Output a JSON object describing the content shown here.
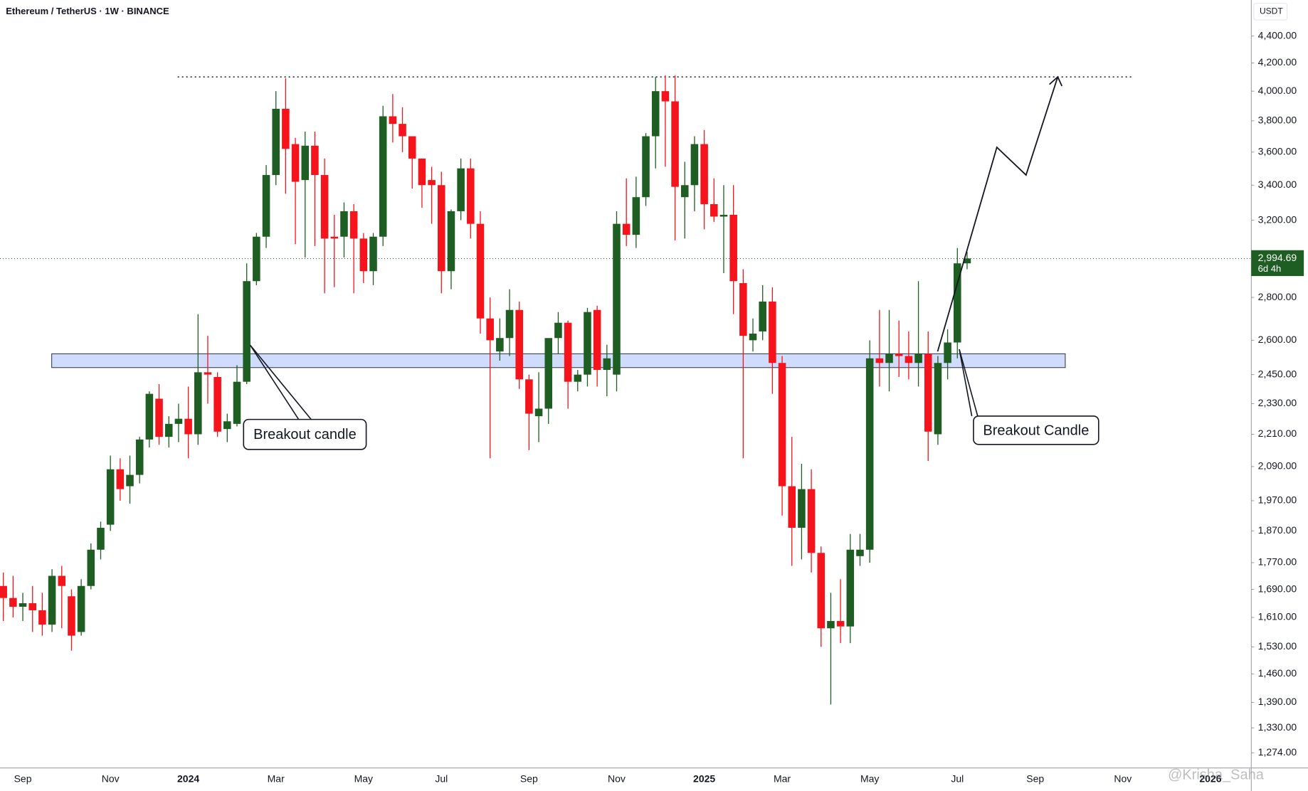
{
  "chart_data": {
    "type": "candlestick",
    "title": "Ethereum / TetherUS · 1W · BINANCE",
    "currency": "USDT",
    "categories": [
      null,
      null,
      "Sep",
      null,
      null,
      null,
      null,
      null,
      null,
      null,
      null,
      "Nov",
      null,
      null,
      null,
      null,
      null,
      null,
      null,
      "2024",
      null,
      null,
      null,
      null,
      null,
      null,
      null,
      null,
      "Mar",
      null,
      null,
      null,
      null,
      null,
      null,
      null,
      null,
      "May",
      null,
      null,
      null,
      null,
      null,
      null,
      null,
      "Jul",
      null,
      null,
      null,
      null,
      null,
      null,
      null,
      null,
      "Sep",
      null,
      null,
      null,
      null,
      null,
      null,
      null,
      null,
      "Nov",
      null,
      null,
      null,
      null,
      null,
      null,
      null,
      null,
      "2025",
      null,
      null,
      null,
      null,
      null,
      null,
      null,
      "Mar",
      null,
      null,
      null,
      null,
      null,
      null,
      null,
      null,
      "May",
      null,
      null,
      null,
      null,
      null,
      null,
      null,
      null,
      "Jul",
      null,
      null,
      null,
      null,
      null,
      null,
      null,
      "Sep",
      null,
      null,
      null,
      null,
      null,
      null,
      null,
      null,
      "Nov",
      null,
      null,
      null,
      null,
      null,
      null,
      null,
      null,
      "2026",
      null,
      null,
      null,
      null
    ],
    "open": [
      1700,
      1665,
      1640,
      1650,
      1630,
      1590,
      1730,
      1670,
      1570,
      1700,
      1810,
      1890,
      2080,
      2020,
      2060,
      2190,
      2350,
      2200,
      2250,
      2270,
      2210,
      2460,
      2440,
      2230,
      2250,
      2420,
      2880,
      3110,
      3460,
      3880,
      3650,
      3430,
      3640,
      3460,
      3110,
      3110,
      3250,
      3100,
      2930,
      3110,
      3830,
      3780,
      3700,
      3560,
      3430,
      3400,
      2930,
      3250,
      3500,
      3180,
      2700,
      2550,
      2610,
      2740,
      2430,
      2280,
      2310,
      2610,
      2680,
      2420,
      2450,
      2740,
      2470,
      2450,
      3180,
      3120,
      3330,
      3700,
      4000,
      3930,
      3330,
      3400,
      3650,
      3290,
      3220,
      3230,
      2870,
      2600,
      2640,
      2780,
      2500,
      2020,
      1880,
      2010,
      1800,
      1580,
      1600,
      1585,
      1790,
      1810,
      2520,
      2500,
      2540,
      2530,
      2500,
      2540,
      2210,
      2500,
      2590,
      2970,
      null,
      null,
      null,
      null,
      null,
      null,
      null,
      null,
      null,
      null,
      null,
      null,
      null,
      null,
      null,
      null,
      null,
      null,
      null,
      null,
      null,
      null,
      null,
      null,
      null,
      null,
      null,
      null,
      null
    ],
    "high": [
      1740,
      1730,
      1680,
      1700,
      1680,
      1750,
      1760,
      1690,
      1720,
      1830,
      1900,
      2130,
      2120,
      2130,
      2200,
      2380,
      2410,
      2280,
      2330,
      2400,
      2720,
      2620,
      2460,
      2290,
      2490,
      2970,
      3130,
      3520,
      4000,
      4090,
      3690,
      3730,
      3730,
      3560,
      3230,
      3300,
      3290,
      3130,
      3130,
      3900,
      3980,
      3890,
      3680,
      3560,
      3510,
      3480,
      3260,
      3560,
      3560,
      3250,
      2800,
      2700,
      2840,
      2780,
      2450,
      2460,
      2600,
      2730,
      2690,
      2470,
      2750,
      2760,
      2580,
      3250,
      3440,
      3450,
      3720,
      4100,
      4110,
      4110,
      3540,
      3700,
      3740,
      3440,
      3400,
      3400,
      2940,
      2700,
      2860,
      2850,
      2530,
      2200,
      2100,
      2080,
      1820,
      1680,
      1720,
      1860,
      1860,
      2600,
      2740,
      2740,
      2690,
      2640,
      2880,
      2640,
      2530,
      2650,
      3050,
      3030,
      null,
      null,
      null,
      null,
      null,
      null,
      null,
      null,
      null,
      null,
      null,
      null,
      null,
      null,
      null,
      null,
      null,
      null,
      null,
      null,
      null,
      null,
      null,
      null,
      null,
      null,
      null,
      null,
      null
    ],
    "low": [
      1600,
      1610,
      1600,
      1570,
      1560,
      1570,
      1580,
      1520,
      1560,
      1690,
      1780,
      1870,
      1970,
      1960,
      2030,
      2160,
      2170,
      2160,
      2180,
      2120,
      2170,
      2330,
      2200,
      2180,
      2240,
      2410,
      2860,
      3050,
      3400,
      3350,
      3070,
      3000,
      3060,
      2820,
      2850,
      3000,
      2820,
      2870,
      2860,
      3060,
      3660,
      3600,
      3380,
      3270,
      3180,
      2820,
      2840,
      3200,
      3100,
      2630,
      2120,
      2510,
      2530,
      2390,
      2150,
      2180,
      2250,
      2540,
      2310,
      2380,
      2400,
      2400,
      2360,
      2380,
      3060,
      3050,
      3280,
      3500,
      3510,
      3090,
      3100,
      3250,
      3150,
      3190,
      2920,
      2720,
      2120,
      2550,
      2600,
      2370,
      1920,
      1760,
      1780,
      1740,
      1530,
      1385,
      1540,
      1540,
      1760,
      1770,
      2400,
      2380,
      2440,
      2430,
      2400,
      2110,
      2170,
      2430,
      2520,
      2940,
      null,
      null,
      null,
      null,
      null,
      null,
      null,
      null,
      null,
      null,
      null,
      null,
      null,
      null,
      null,
      null,
      null,
      null,
      null,
      null,
      null,
      null,
      null,
      null,
      null,
      null,
      null,
      null,
      null
    ],
    "close": [
      1665,
      1640,
      1650,
      1630,
      1590,
      1730,
      1700,
      1560,
      1700,
      1810,
      1880,
      2080,
      2010,
      2060,
      2190,
      2370,
      2200,
      2250,
      2270,
      2210,
      2460,
      2450,
      2220,
      2260,
      2420,
      2880,
      3110,
      3460,
      3880,
      3620,
      3420,
      3640,
      3460,
      3100,
      3100,
      3250,
      3100,
      2930,
      3110,
      3830,
      3780,
      3700,
      3560,
      3400,
      3400,
      2930,
      3250,
      3500,
      3180,
      2700,
      2600,
      2610,
      2740,
      2430,
      2290,
      2310,
      2610,
      2680,
      2420,
      2450,
      2730,
      2470,
      2520,
      3180,
      3120,
      3330,
      3700,
      4000,
      3930,
      3390,
      3400,
      3650,
      3290,
      3220,
      3230,
      2880,
      2620,
      2630,
      2780,
      2500,
      2020,
      1880,
      2010,
      1800,
      1580,
      1600,
      1585,
      1810,
      1810,
      2520,
      2500,
      2540,
      2530,
      2500,
      2540,
      2220,
      2500,
      2590,
      2970,
      2995,
      null,
      null,
      null,
      null,
      null,
      null,
      null,
      null,
      null,
      null,
      null,
      null,
      null,
      null,
      null,
      null,
      null,
      null,
      null,
      null,
      null,
      null,
      null,
      null,
      null,
      null,
      null,
      null,
      null
    ],
    "up_color": "#1e5e22",
    "down_color": "#f5141c",
    "log_scale": true,
    "ylim": [
      1241,
      4683
    ],
    "yticks": [
      {
        "value": 1274,
        "label": "1,274.00"
      },
      {
        "value": 1330,
        "label": "1,330.00"
      },
      {
        "value": 1390,
        "label": "1,390.00"
      },
      {
        "value": 1460,
        "label": "1,460.00"
      },
      {
        "value": 1530,
        "label": "1,530.00"
      },
      {
        "value": 1610,
        "label": "1,610.00"
      },
      {
        "value": 1690,
        "label": "1,690.00"
      },
      {
        "value": 1770,
        "label": "1,770.00"
      },
      {
        "value": 1870,
        "label": "1,870.00"
      },
      {
        "value": 1970,
        "label": "1,970.00"
      },
      {
        "value": 2090,
        "label": "2,090.00"
      },
      {
        "value": 2210,
        "label": "2,210.00"
      },
      {
        "value": 2330,
        "label": "2,330.00"
      },
      {
        "value": 2450,
        "label": "2,450.00"
      },
      {
        "value": 2600,
        "label": "2,600.00"
      },
      {
        "value": 2800,
        "label": "2,800.00"
      },
      {
        "value": 3200,
        "label": "3,200.00"
      },
      {
        "value": 3400,
        "label": "3,400.00"
      },
      {
        "value": 3600,
        "label": "3,600.00"
      },
      {
        "value": 3800,
        "label": "3,800.00"
      },
      {
        "value": 4000,
        "label": "4,000.00"
      },
      {
        "value": 4200,
        "label": "4,200.00"
      },
      {
        "value": 4400,
        "label": "4,400.00"
      }
    ],
    "grid": false,
    "last_price": {
      "value": 2994.69,
      "label": "2,994.69"
    },
    "countdown": "6d 4h",
    "resistance_level": 4100,
    "support_zone": [
      2480,
      2540
    ],
    "projection": [
      2550,
      3630,
      3460,
      4100
    ],
    "annotations": [
      "Breakout candle",
      "Breakout Candle"
    ],
    "watermark": "@Krisha_Saha"
  }
}
